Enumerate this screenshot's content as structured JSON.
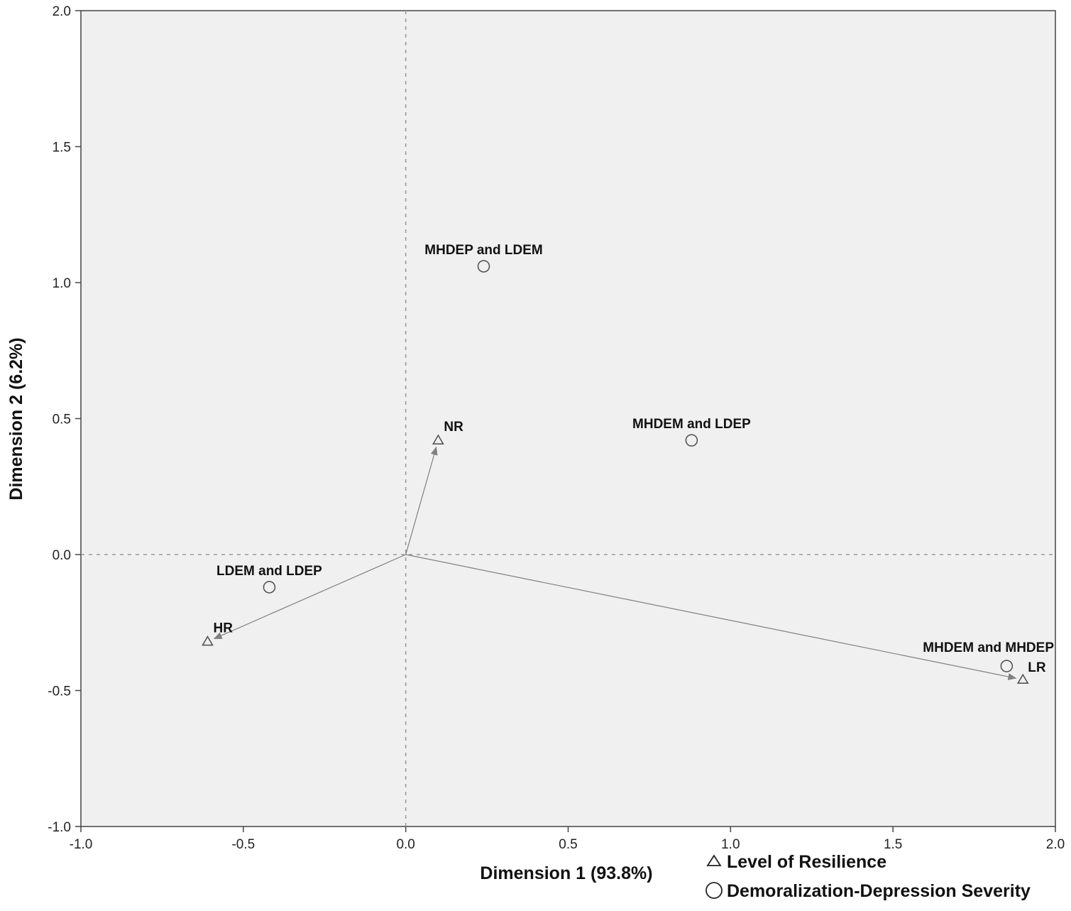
{
  "chart_data": {
    "type": "scatter",
    "title": "",
    "xlabel": "Dimension 1 (93.8%)",
    "ylabel": "Dimension 2 (6.2%)",
    "xlim": [
      -1.0,
      2.0
    ],
    "ylim": [
      -1.0,
      2.0
    ],
    "xticks": [
      "-1.0",
      "-0.5",
      "0.0",
      "0.5",
      "1.0",
      "1.5",
      "2.0"
    ],
    "yticks": [
      "-1.0",
      "-0.5",
      "0.0",
      "0.5",
      "1.0",
      "1.5",
      "2.0"
    ],
    "reference_lines": {
      "x": 0,
      "y": 0,
      "style": "dashed"
    },
    "grid": false,
    "legend_position": "bottom-right",
    "series": [
      {
        "name": "Level of Resilience",
        "marker": "triangle",
        "arrows_from_origin": true,
        "points": [
          {
            "label": "NR",
            "x": 0.1,
            "y": 0.42
          },
          {
            "label": "HR",
            "x": -0.61,
            "y": -0.32
          },
          {
            "label": "LR",
            "x": 1.9,
            "y": -0.46
          }
        ]
      },
      {
        "name": "Demoralization-Depression Severity",
        "marker": "circle",
        "arrows_from_origin": false,
        "points": [
          {
            "label": "MHDEP and LDEM",
            "x": 0.24,
            "y": 1.06
          },
          {
            "label": "MHDEM and LDEP",
            "x": 0.88,
            "y": 0.42
          },
          {
            "label": "LDEM and LDEP",
            "x": -0.42,
            "y": -0.12
          },
          {
            "label": "MHDEM and MHDEP",
            "x": 1.85,
            "y": -0.41
          }
        ]
      }
    ]
  },
  "colors": {
    "plot_background": "#f0f0f0",
    "frame": "#444444",
    "marker": "#555555",
    "arrow": "#808080",
    "reference_line": "#999999"
  }
}
